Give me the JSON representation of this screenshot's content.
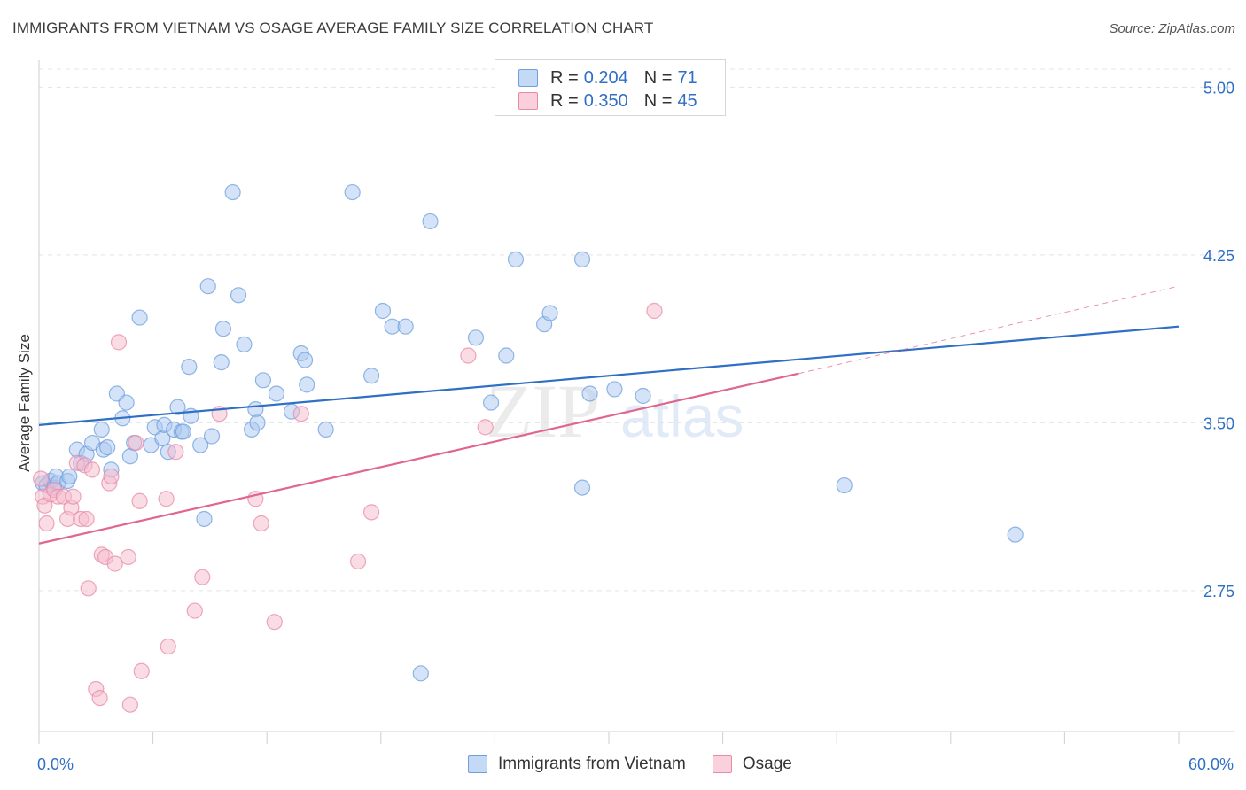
{
  "title": "IMMIGRANTS FROM VIETNAM VS OSAGE AVERAGE FAMILY SIZE CORRELATION CHART",
  "source": "Source: ZipAtlas.com",
  "legend": {
    "rows": [
      {
        "r_label": "R =",
        "r_value": "0.204",
        "n_label": "N =",
        "n_value": "71"
      },
      {
        "r_label": "R =",
        "r_value": "0.350",
        "n_label": "N =",
        "n_value": "45"
      }
    ]
  },
  "bottom_legend": [
    "Immigrants from Vietnam",
    "Osage"
  ],
  "colors": {
    "blue_fill": "#a9c8ef",
    "blue_stroke": "#6f9fdd",
    "blue_line": "#2f6fc4",
    "pink_fill": "#f6b9cb",
    "pink_stroke": "#e88aa8",
    "pink_line": "#e0668e",
    "tick_text": "#2f6fc4",
    "grid": "#e4e4e4"
  },
  "watermark": "ZIPatlas",
  "chart_data": {
    "type": "scatter",
    "xlabel": "",
    "ylabel": "Average Family Size",
    "xlim": [
      0,
      60
    ],
    "ylim": [
      2.12,
      5.12
    ],
    "x_tick_labels": [
      "0.0%",
      "60.0%"
    ],
    "y_ticks": [
      2.75,
      3.5,
      4.25,
      5.0
    ],
    "y_tick_labels": [
      "2.75",
      "3.50",
      "4.25",
      "5.00"
    ],
    "grid": "horizontal dashed",
    "legend_position": "top-center",
    "series": [
      {
        "name": "Immigrants from Vietnam",
        "color": "blue",
        "points": [
          [
            0.2,
            3.23
          ],
          [
            0.4,
            3.22
          ],
          [
            0.6,
            3.24
          ],
          [
            0.8,
            3.21
          ],
          [
            0.9,
            3.26
          ],
          [
            1.0,
            3.23
          ],
          [
            1.5,
            3.24
          ],
          [
            1.6,
            3.26
          ],
          [
            2.0,
            3.38
          ],
          [
            2.2,
            3.32
          ],
          [
            2.5,
            3.36
          ],
          [
            2.8,
            3.41
          ],
          [
            3.3,
            3.47
          ],
          [
            3.4,
            3.38
          ],
          [
            3.6,
            3.39
          ],
          [
            3.8,
            3.29
          ],
          [
            4.1,
            3.63
          ],
          [
            4.4,
            3.52
          ],
          [
            4.6,
            3.59
          ],
          [
            4.8,
            3.35
          ],
          [
            5.0,
            3.41
          ],
          [
            5.3,
            3.97
          ],
          [
            5.9,
            3.4
          ],
          [
            6.1,
            3.48
          ],
          [
            6.5,
            3.43
          ],
          [
            6.6,
            3.49
          ],
          [
            6.8,
            3.37
          ],
          [
            7.1,
            3.47
          ],
          [
            7.3,
            3.57
          ],
          [
            7.5,
            3.46
          ],
          [
            7.6,
            3.46
          ],
          [
            7.9,
            3.75
          ],
          [
            8.0,
            3.53
          ],
          [
            8.5,
            3.4
          ],
          [
            8.7,
            3.07
          ],
          [
            8.9,
            4.11
          ],
          [
            9.1,
            3.44
          ],
          [
            9.6,
            3.77
          ],
          [
            9.7,
            3.92
          ],
          [
            10.2,
            4.53
          ],
          [
            10.5,
            4.07
          ],
          [
            10.8,
            3.85
          ],
          [
            11.2,
            3.47
          ],
          [
            11.4,
            3.56
          ],
          [
            11.5,
            3.5
          ],
          [
            11.8,
            3.69
          ],
          [
            12.5,
            3.63
          ],
          [
            13.3,
            3.55
          ],
          [
            13.8,
            3.81
          ],
          [
            14.0,
            3.78
          ],
          [
            14.1,
            3.67
          ],
          [
            15.1,
            3.47
          ],
          [
            16.5,
            4.53
          ],
          [
            17.5,
            3.71
          ],
          [
            18.1,
            4.0
          ],
          [
            18.6,
            3.93
          ],
          [
            19.3,
            3.93
          ],
          [
            20.1,
            2.38
          ],
          [
            20.6,
            4.4
          ],
          [
            23.0,
            3.88
          ],
          [
            23.8,
            3.59
          ],
          [
            24.6,
            3.8
          ],
          [
            25.1,
            4.23
          ],
          [
            26.6,
            3.94
          ],
          [
            26.9,
            3.99
          ],
          [
            28.6,
            4.23
          ],
          [
            28.6,
            3.21
          ],
          [
            29.0,
            3.63
          ],
          [
            30.3,
            3.65
          ],
          [
            31.8,
            3.62
          ],
          [
            42.4,
            3.22
          ],
          [
            51.4,
            3.0
          ]
        ]
      },
      {
        "name": "Osage",
        "color": "pink",
        "points": [
          [
            0.1,
            3.25
          ],
          [
            0.2,
            3.17
          ],
          [
            0.3,
            3.13
          ],
          [
            0.4,
            3.05
          ],
          [
            0.6,
            3.18
          ],
          [
            0.8,
            3.2
          ],
          [
            1.0,
            3.17
          ],
          [
            1.3,
            3.17
          ],
          [
            1.5,
            3.07
          ],
          [
            1.7,
            3.12
          ],
          [
            1.8,
            3.17
          ],
          [
            2.0,
            3.32
          ],
          [
            2.2,
            3.07
          ],
          [
            2.4,
            3.31
          ],
          [
            2.5,
            3.07
          ],
          [
            2.6,
            2.76
          ],
          [
            2.8,
            3.29
          ],
          [
            3.0,
            2.31
          ],
          [
            3.2,
            2.27
          ],
          [
            3.3,
            2.91
          ],
          [
            3.5,
            2.9
          ],
          [
            3.7,
            3.23
          ],
          [
            3.8,
            3.26
          ],
          [
            4.0,
            2.87
          ],
          [
            4.2,
            3.86
          ],
          [
            4.7,
            2.9
          ],
          [
            4.8,
            2.24
          ],
          [
            5.1,
            3.41
          ],
          [
            5.3,
            3.15
          ],
          [
            5.4,
            2.39
          ],
          [
            6.7,
            3.16
          ],
          [
            6.8,
            2.5
          ],
          [
            7.2,
            3.37
          ],
          [
            8.2,
            2.66
          ],
          [
            8.6,
            2.81
          ],
          [
            9.5,
            3.54
          ],
          [
            11.4,
            3.16
          ],
          [
            11.7,
            3.05
          ],
          [
            12.4,
            2.61
          ],
          [
            13.8,
            3.54
          ],
          [
            16.8,
            2.88
          ],
          [
            17.5,
            3.1
          ],
          [
            22.6,
            3.8
          ],
          [
            23.5,
            3.48
          ],
          [
            32.4,
            4.0
          ]
        ]
      }
    ],
    "trend_lines": [
      {
        "series": "Immigrants from Vietnam",
        "x": [
          0,
          60
        ],
        "y": [
          3.49,
          3.93
        ],
        "style": "solid"
      },
      {
        "series": "Osage",
        "x": [
          0,
          40
        ],
        "y": [
          2.96,
          3.72
        ],
        "style": "solid"
      },
      {
        "series": "Osage",
        "x": [
          40,
          60
        ],
        "y": [
          3.72,
          4.11
        ],
        "style": "dashed"
      }
    ]
  }
}
